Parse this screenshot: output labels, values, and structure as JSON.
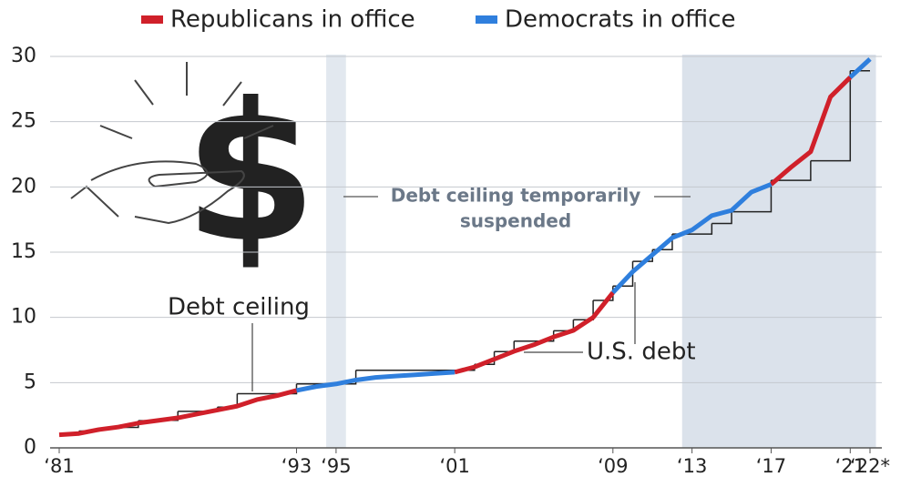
{
  "chart_data": {
    "type": "line",
    "x": [
      1981,
      1982,
      1983,
      1984,
      1985,
      1986,
      1987,
      1988,
      1989,
      1990,
      1991,
      1992,
      1993,
      1994,
      1995,
      1996,
      1997,
      1998,
      1999,
      2000,
      2001,
      2002,
      2003,
      2004,
      2005,
      2006,
      2007,
      2008,
      2009,
      2010,
      2011,
      2012,
      2013,
      2014,
      2015,
      2016,
      2017,
      2018,
      2019,
      2020,
      2021,
      2022
    ],
    "series": [
      {
        "name": "Republicans in office",
        "color": "#d0202a",
        "values": [
          1.0,
          1.1,
          1.4,
          1.6,
          1.9,
          2.1,
          2.3,
          2.6,
          2.9,
          3.2,
          3.7,
          4.0,
          4.4,
          null,
          null,
          null,
          null,
          null,
          null,
          null,
          5.8,
          6.2,
          6.8,
          7.4,
          7.9,
          8.5,
          9.0,
          10.0,
          11.9,
          null,
          null,
          null,
          null,
          null,
          null,
          null,
          20.2,
          21.5,
          22.7,
          26.9,
          28.4,
          null
        ]
      },
      {
        "name": "Democrats in office",
        "color": "#2f7fdd",
        "values": [
          null,
          null,
          null,
          null,
          null,
          null,
          null,
          null,
          null,
          null,
          null,
          null,
          4.4,
          4.7,
          4.9,
          5.2,
          5.4,
          5.5,
          5.6,
          5.7,
          5.8,
          null,
          null,
          null,
          null,
          null,
          null,
          null,
          11.9,
          13.5,
          14.8,
          16.1,
          16.7,
          17.8,
          18.2,
          19.6,
          20.2,
          null,
          null,
          null,
          28.4,
          29.8
        ]
      }
    ],
    "ceiling": {
      "label": "Debt ceiling",
      "color": "#222222",
      "x": [
        1981,
        1982,
        1983,
        1984,
        1985,
        1986,
        1987,
        1989,
        1990,
        1993,
        1996,
        2002,
        2003,
        2004,
        2006,
        2007,
        2008,
        2009,
        2010,
        2011,
        2012,
        2014,
        2015,
        2017,
        2019,
        2021
      ],
      "values": [
        1.08,
        1.29,
        1.49,
        1.57,
        2.08,
        2.11,
        2.8,
        3.12,
        4.15,
        4.9,
        5.95,
        6.4,
        7.38,
        8.18,
        8.97,
        9.82,
        11.3,
        12.4,
        14.29,
        15.19,
        16.39,
        17.2,
        18.1,
        20.5,
        22.0,
        28.9
      ]
    },
    "debt_label": "U.S. debt",
    "suspended": {
      "label": [
        "Debt ceiling temporarily",
        "suspended"
      ],
      "ranges": [
        [
          1994.5,
          1995.5
        ],
        [
          2012.5,
          2022.3
        ]
      ],
      "color": "#dbe2eb"
    },
    "xlim": [
      1981,
      2022
    ],
    "xticks": [
      {
        "value": 1981,
        "label": "‘81"
      },
      {
        "value": 1993,
        "label": "‘93"
      },
      {
        "value": 1995,
        "label": "‘95"
      },
      {
        "value": 2001,
        "label": "‘01"
      },
      {
        "value": 2009,
        "label": "‘09"
      },
      {
        "value": 2013,
        "label": "‘13"
      },
      {
        "value": 2017,
        "label": "‘17"
      },
      {
        "value": 2021,
        "label": "‘21"
      },
      {
        "value": 2022,
        "label": "‘22*"
      }
    ],
    "ylim": [
      0,
      30
    ],
    "yticks": [
      0,
      5,
      10,
      15,
      20,
      25,
      30
    ],
    "grid": true
  }
}
